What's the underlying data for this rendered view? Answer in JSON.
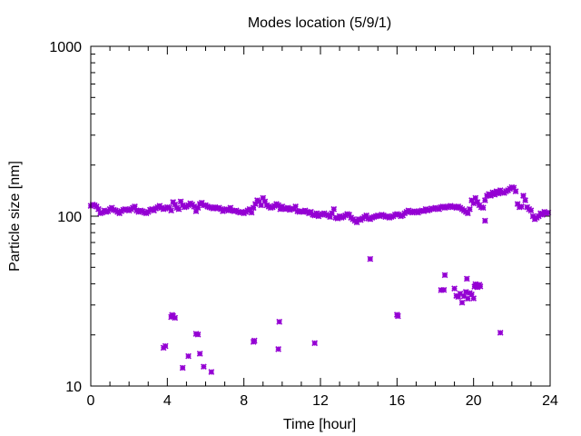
{
  "chart_data": {
    "type": "scatter",
    "title": "Modes location (5/9/1)",
    "xlabel": "Time [hour]",
    "ylabel": "Particle size [nm]",
    "xlim": [
      0,
      24
    ],
    "ylim": [
      10,
      1000
    ],
    "y_scale": "log",
    "x_ticks": [
      0,
      4,
      8,
      12,
      16,
      20,
      24
    ],
    "x_tick_labels": [
      "0",
      "4",
      "8",
      "12",
      "16",
      "20",
      "24"
    ],
    "y_ticks": [
      10,
      100,
      1000
    ],
    "y_tick_labels": [
      "10",
      "100",
      "1000"
    ],
    "grid": false,
    "legend": "none",
    "marker_color": "#9400d3",
    "series": [
      {
        "points": [
          [
            0.0,
            115
          ],
          [
            0.1,
            117
          ],
          [
            0.2,
            116
          ],
          [
            0.3,
            114
          ],
          [
            0.4,
            110
          ],
          [
            0.5,
            104
          ],
          [
            0.6,
            105
          ],
          [
            0.7,
            108
          ],
          [
            0.8,
            106
          ],
          [
            0.9,
            107
          ],
          [
            1.0,
            110
          ],
          [
            1.1,
            112
          ],
          [
            1.2,
            109
          ],
          [
            1.3,
            108
          ],
          [
            1.4,
            106
          ],
          [
            1.5,
            104
          ],
          [
            1.6,
            107
          ],
          [
            1.7,
            109
          ],
          [
            1.8,
            110
          ],
          [
            1.9,
            109
          ],
          [
            2.0,
            108
          ],
          [
            2.1,
            110
          ],
          [
            2.2,
            112
          ],
          [
            2.3,
            114
          ],
          [
            2.4,
            108
          ],
          [
            2.5,
            106
          ],
          [
            2.6,
            108
          ],
          [
            2.7,
            107
          ],
          [
            2.8,
            105
          ],
          [
            2.9,
            104
          ],
          [
            3.0,
            106
          ],
          [
            3.1,
            109
          ],
          [
            3.2,
            110
          ],
          [
            3.3,
            108
          ],
          [
            3.4,
            111
          ],
          [
            3.5,
            113
          ],
          [
            3.6,
            115
          ],
          [
            3.7,
            112
          ],
          [
            3.8,
            110
          ],
          [
            3.9,
            111
          ],
          [
            4.0,
            113
          ],
          [
            4.1,
            112
          ],
          [
            4.2,
            108
          ],
          [
            4.3,
            121
          ],
          [
            4.4,
            117
          ],
          [
            4.5,
            112
          ],
          [
            4.6,
            110
          ],
          [
            4.7,
            122
          ],
          [
            4.8,
            116
          ],
          [
            4.9,
            113
          ],
          [
            5.0,
            114
          ],
          [
            5.1,
            116
          ],
          [
            5.2,
            119
          ],
          [
            5.3,
            117
          ],
          [
            5.4,
            114
          ],
          [
            5.5,
            107
          ],
          [
            5.6,
            112
          ],
          [
            5.7,
            118
          ],
          [
            5.8,
            120
          ],
          [
            5.9,
            116
          ],
          [
            6.0,
            116
          ],
          [
            6.1,
            114
          ],
          [
            6.2,
            113
          ],
          [
            6.3,
            112
          ],
          [
            6.4,
            111
          ],
          [
            6.5,
            113
          ],
          [
            6.6,
            111
          ],
          [
            6.7,
            112
          ],
          [
            6.8,
            110
          ],
          [
            6.9,
            107
          ],
          [
            7.0,
            109
          ],
          [
            7.1,
            110
          ],
          [
            7.2,
            108
          ],
          [
            7.3,
            112
          ],
          [
            7.4,
            108
          ],
          [
            7.5,
            107
          ],
          [
            7.6,
            108
          ],
          [
            7.7,
            106
          ],
          [
            7.8,
            105
          ],
          [
            7.9,
            106
          ],
          [
            8.0,
            104
          ],
          [
            8.1,
            106
          ],
          [
            8.2,
            108
          ],
          [
            8.3,
            110
          ],
          [
            8.4,
            105
          ],
          [
            8.5,
            112
          ],
          [
            8.6,
            118
          ],
          [
            8.7,
            124
          ],
          [
            8.8,
            122
          ],
          [
            8.9,
            116
          ],
          [
            9.0,
            128
          ],
          [
            9.1,
            122
          ],
          [
            9.2,
            116
          ],
          [
            9.3,
            114
          ],
          [
            9.4,
            112
          ],
          [
            9.5,
            113
          ],
          [
            9.6,
            115
          ],
          [
            9.7,
            118
          ],
          [
            9.8,
            116
          ],
          [
            9.9,
            110
          ],
          [
            10.0,
            114
          ],
          [
            10.1,
            111
          ],
          [
            10.2,
            110
          ],
          [
            10.3,
            112
          ],
          [
            10.4,
            109
          ],
          [
            10.5,
            111
          ],
          [
            10.6,
            110
          ],
          [
            10.7,
            114
          ],
          [
            10.8,
            107
          ],
          [
            10.9,
            106
          ],
          [
            11.0,
            107
          ],
          [
            11.1,
            106
          ],
          [
            11.2,
            108
          ],
          [
            11.3,
            106
          ],
          [
            11.4,
            104
          ],
          [
            11.5,
            106
          ],
          [
            11.6,
            102
          ],
          [
            11.7,
            101
          ],
          [
            11.8,
            104
          ],
          [
            11.9,
            100
          ],
          [
            12.0,
            102
          ],
          [
            12.1,
            103
          ],
          [
            12.2,
            104
          ],
          [
            12.3,
            102
          ],
          [
            12.4,
            101
          ],
          [
            12.5,
            99
          ],
          [
            12.6,
            104
          ],
          [
            12.7,
            110
          ],
          [
            12.8,
            98
          ],
          [
            12.9,
            97
          ],
          [
            13.0,
            100
          ],
          [
            13.1,
            98
          ],
          [
            13.2,
            99
          ],
          [
            13.3,
            101
          ],
          [
            13.4,
            103
          ],
          [
            13.5,
            102
          ],
          [
            13.6,
            98
          ],
          [
            13.7,
            96
          ],
          [
            13.8,
            94
          ],
          [
            13.9,
            92
          ],
          [
            14.0,
            96
          ],
          [
            14.1,
            95
          ],
          [
            14.2,
            97
          ],
          [
            14.3,
            99
          ],
          [
            14.4,
            101
          ],
          [
            14.5,
            97
          ],
          [
            14.6,
            96
          ],
          [
            14.7,
            98
          ],
          [
            14.8,
            99
          ],
          [
            14.9,
            100
          ],
          [
            15.0,
            101
          ],
          [
            15.1,
            100
          ],
          [
            15.2,
            102
          ],
          [
            15.3,
            101
          ],
          [
            15.4,
            99
          ],
          [
            15.5,
            100
          ],
          [
            15.6,
            98
          ],
          [
            15.7,
            99
          ],
          [
            15.8,
            100
          ],
          [
            15.9,
            102
          ],
          [
            16.0,
            103
          ],
          [
            16.1,
            102
          ],
          [
            16.2,
            100
          ],
          [
            16.3,
            101
          ],
          [
            16.4,
            104
          ],
          [
            16.5,
            106
          ],
          [
            16.6,
            108
          ],
          [
            16.7,
            106
          ],
          [
            16.8,
            105
          ],
          [
            16.9,
            107
          ],
          [
            17.0,
            106
          ],
          [
            17.1,
            105
          ],
          [
            17.2,
            107
          ],
          [
            17.3,
            108
          ],
          [
            17.4,
            107
          ],
          [
            17.5,
            110
          ],
          [
            17.6,
            108
          ],
          [
            17.7,
            109
          ],
          [
            17.8,
            111
          ],
          [
            17.9,
            110
          ],
          [
            18.0,
            112
          ],
          [
            18.1,
            111
          ],
          [
            18.2,
            110
          ],
          [
            18.3,
            113
          ],
          [
            18.4,
            114
          ],
          [
            18.5,
            112
          ],
          [
            18.6,
            113
          ],
          [
            18.7,
            114
          ],
          [
            18.8,
            115
          ],
          [
            18.9,
            113
          ],
          [
            19.0,
            114
          ],
          [
            19.1,
            112
          ],
          [
            19.2,
            114
          ],
          [
            19.3,
            112
          ],
          [
            19.4,
            110
          ],
          [
            19.5,
            108
          ],
          [
            19.6,
            106
          ],
          [
            19.7,
            104
          ],
          [
            19.8,
            110
          ],
          [
            19.9,
            124
          ],
          [
            20.0,
            119
          ],
          [
            20.1,
            128
          ],
          [
            20.2,
            121
          ],
          [
            20.3,
            116
          ],
          [
            20.4,
            113
          ],
          [
            20.5,
            112
          ],
          [
            20.6,
            124
          ],
          [
            20.7,
            132
          ],
          [
            20.8,
            135
          ],
          [
            20.9,
            132
          ],
          [
            21.0,
            138
          ],
          [
            21.1,
            134
          ],
          [
            21.2,
            140
          ],
          [
            21.3,
            136
          ],
          [
            21.4,
            142
          ],
          [
            21.5,
            138
          ],
          [
            21.6,
            137
          ],
          [
            21.7,
            140
          ],
          [
            21.8,
            142
          ],
          [
            21.9,
            145
          ],
          [
            22.0,
            148
          ],
          [
            22.1,
            147
          ],
          [
            22.2,
            140
          ],
          [
            22.3,
            118
          ],
          [
            22.4,
            113
          ],
          [
            22.5,
            114
          ],
          [
            22.6,
            132
          ],
          [
            22.7,
            124
          ],
          [
            22.8,
            113
          ],
          [
            22.9,
            110
          ],
          [
            23.0,
            108
          ],
          [
            23.1,
            100
          ],
          [
            23.2,
            96
          ],
          [
            23.3,
            98
          ],
          [
            23.4,
            100
          ],
          [
            23.5,
            104
          ],
          [
            23.6,
            102
          ],
          [
            23.7,
            106
          ],
          [
            23.8,
            104
          ],
          [
            23.9,
            105
          ],
          [
            20.6,
            94
          ],
          [
            14.6,
            56
          ],
          [
            3.8,
            16.8
          ],
          [
            3.9,
            17.2
          ],
          [
            4.2,
            25.5
          ],
          [
            4.25,
            26.2
          ],
          [
            4.3,
            25.8
          ],
          [
            4.4,
            25.2
          ],
          [
            4.8,
            12.8
          ],
          [
            5.1,
            15
          ],
          [
            5.5,
            20.3
          ],
          [
            5.6,
            20.1
          ],
          [
            5.7,
            15.5
          ],
          [
            5.9,
            13
          ],
          [
            6.3,
            12.1
          ],
          [
            8.5,
            18.2
          ],
          [
            8.55,
            18.5
          ],
          [
            9.8,
            16.5
          ],
          [
            9.85,
            23.9
          ],
          [
            11.7,
            17.9
          ],
          [
            16.0,
            26.3
          ],
          [
            16.05,
            25.8
          ],
          [
            18.3,
            36.7
          ],
          [
            18.45,
            36.8
          ],
          [
            18.5,
            45
          ],
          [
            19.0,
            37.5
          ],
          [
            19.1,
            34
          ],
          [
            19.2,
            33.5
          ],
          [
            19.3,
            35
          ],
          [
            19.4,
            31
          ],
          [
            19.5,
            33.8
          ],
          [
            19.6,
            35.8
          ],
          [
            19.65,
            42.8
          ],
          [
            19.7,
            32.7
          ],
          [
            19.8,
            35.3
          ],
          [
            19.9,
            34.6
          ],
          [
            20.0,
            32.8
          ],
          [
            20.05,
            38.5
          ],
          [
            20.1,
            39.8
          ],
          [
            20.2,
            38.2
          ],
          [
            20.3,
            39.5
          ],
          [
            20.35,
            38.6
          ],
          [
            21.4,
            20.6
          ]
        ]
      }
    ]
  }
}
